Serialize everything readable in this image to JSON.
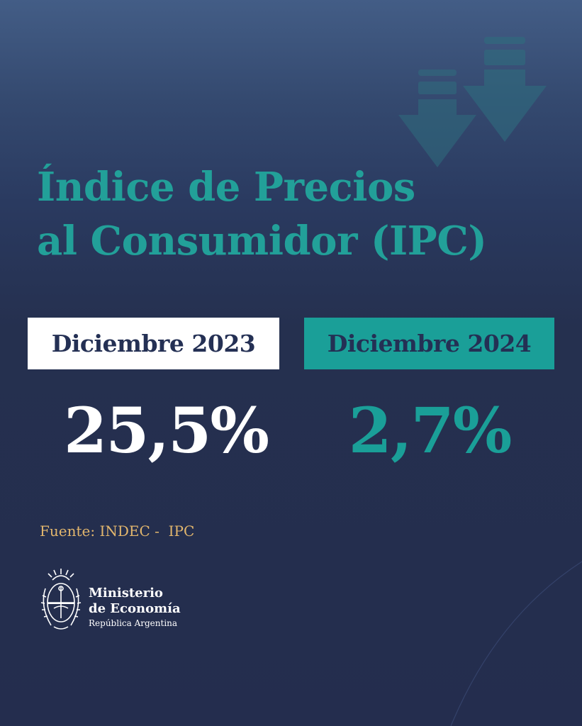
{
  "title": {
    "line1": "Índice de Precios",
    "line2": "al Consumidor (IPC)"
  },
  "comparison": [
    {
      "period": "Diciembre 2023",
      "value": "25,5%"
    },
    {
      "period": "Diciembre 2024",
      "value": "2,7%"
    }
  ],
  "source": "Fuente: INDEC -  IPC",
  "ministry": {
    "line1": "Ministerio",
    "line2": "de Economía",
    "line3": "República Argentina"
  },
  "colors": {
    "background": "#242d4e",
    "accent_teal": "#1a9f98",
    "source_gold": "#e2b66d",
    "white": "#ffffff"
  },
  "icons": [
    "down-arrow-icon",
    "down-arrow-icon",
    "coat-of-arms-icon"
  ]
}
